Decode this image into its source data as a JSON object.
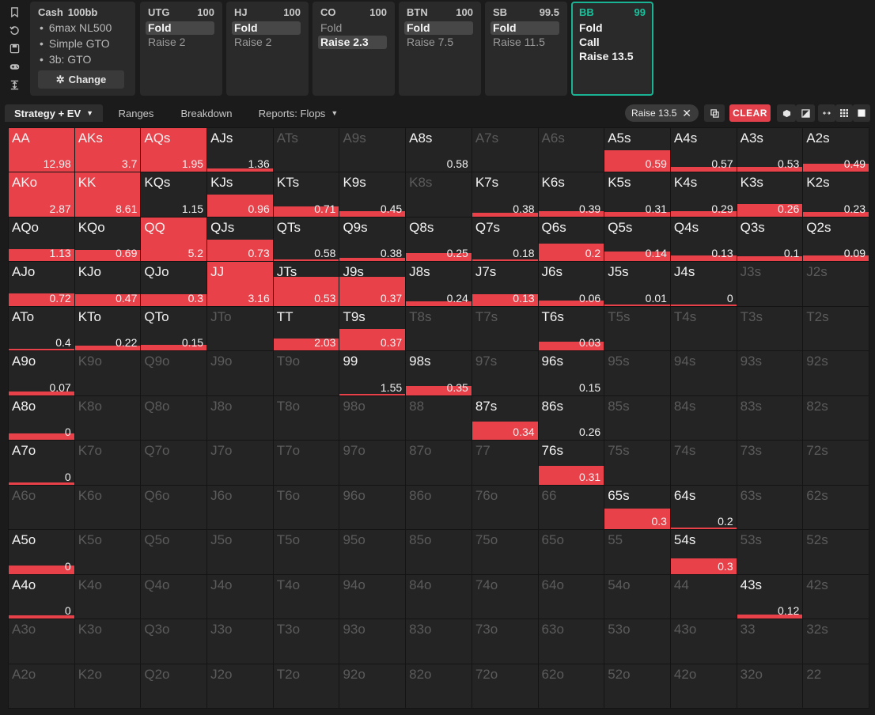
{
  "rail_icons": [
    "bookmark-icon",
    "reset-icon",
    "save-icon",
    "gamepad-icon",
    "collapse-icon"
  ],
  "info_card": {
    "title": "Cash",
    "stack": "100bb",
    "lines": [
      "6max NL500",
      "Simple GTO",
      "3b: GTO"
    ],
    "change_label": "Change"
  },
  "positions": [
    {
      "name": "UTG",
      "stack": "100",
      "actions": [
        {
          "label": "Fold",
          "selected": true
        },
        {
          "label": "Raise 2",
          "selected": false
        }
      ]
    },
    {
      "name": "HJ",
      "stack": "100",
      "actions": [
        {
          "label": "Fold",
          "selected": true
        },
        {
          "label": "Raise 2",
          "selected": false
        }
      ]
    },
    {
      "name": "CO",
      "stack": "100",
      "actions": [
        {
          "label": "Fold",
          "selected": false
        },
        {
          "label": "Raise 2.3",
          "selected": true
        }
      ]
    },
    {
      "name": "BTN",
      "stack": "100",
      "actions": [
        {
          "label": "Fold",
          "selected": true
        },
        {
          "label": "Raise 7.5",
          "selected": false
        }
      ]
    },
    {
      "name": "SB",
      "stack": "99.5",
      "actions": [
        {
          "label": "Fold",
          "selected": true
        },
        {
          "label": "Raise 11.5",
          "selected": false
        }
      ]
    },
    {
      "name": "BB",
      "stack": "99",
      "actions": [
        {
          "label": "Fold",
          "selected": false
        },
        {
          "label": "Call",
          "selected": false
        },
        {
          "label": "Raise 13.5",
          "selected": false
        }
      ],
      "active": true
    }
  ],
  "tabs": [
    {
      "label": "Strategy + EV",
      "active": true,
      "dropdown": true
    },
    {
      "label": "Ranges",
      "active": false,
      "dropdown": false
    },
    {
      "label": "Breakdown",
      "active": false,
      "dropdown": false
    },
    {
      "label": "Reports: Flops",
      "active": false,
      "dropdown": true
    }
  ],
  "filter_chip": {
    "label": "Raise 13.5"
  },
  "clear_label": "CLEAR",
  "colors": {
    "accent_teal": "#1ab394",
    "raise_red": "#e8414a",
    "cell_bg": "#242424"
  },
  "grid": {
    "ranks": [
      "A",
      "K",
      "Q",
      "J",
      "T",
      "9",
      "8",
      "7",
      "6",
      "5",
      "4",
      "3",
      "2"
    ],
    "rows": [
      [
        [
          1.0,
          "12.98"
        ],
        [
          1.0,
          "3.7"
        ],
        [
          1.0,
          "1.95"
        ],
        [
          0.08,
          "1.36"
        ],
        null,
        null,
        [
          0.0,
          "0.58"
        ],
        null,
        null,
        [
          0.5,
          "0.59"
        ],
        [
          0.12,
          "0.57"
        ],
        [
          0.12,
          "0.53"
        ],
        [
          0.18,
          "0.49"
        ]
      ],
      [
        [
          1.0,
          "2.87"
        ],
        [
          1.0,
          "8.61"
        ],
        [
          0.0,
          "1.15"
        ],
        [
          0.5,
          "0.96"
        ],
        [
          0.24,
          "0.71"
        ],
        [
          0.12,
          "0.45"
        ],
        null,
        [
          0.08,
          "0.38"
        ],
        [
          0.12,
          "0.39"
        ],
        [
          0.1,
          "0.31"
        ],
        [
          0.12,
          "0.29"
        ],
        [
          0.28,
          "0.26"
        ],
        [
          0.1,
          "0.23"
        ]
      ],
      [
        [
          0.28,
          "1.13"
        ],
        [
          0.26,
          "0.69"
        ],
        [
          1.0,
          "5.2"
        ],
        [
          0.5,
          "0.73"
        ],
        [
          0.05,
          "0.58"
        ],
        [
          0.08,
          "0.38"
        ],
        [
          0.18,
          "0.25"
        ],
        [
          0.04,
          "0.18"
        ],
        [
          0.4,
          "0.2"
        ],
        [
          0.22,
          "0.14"
        ],
        [
          0.14,
          "0.13"
        ],
        [
          0.12,
          "0.1"
        ],
        [
          0.14,
          "0.09"
        ]
      ],
      [
        [
          0.28,
          "0.72"
        ],
        [
          0.26,
          "0.47"
        ],
        [
          0.26,
          "0.3"
        ],
        [
          1.0,
          "3.16"
        ],
        [
          0.66,
          "0.53"
        ],
        [
          0.66,
          "0.37"
        ],
        [
          0.1,
          "0.24"
        ],
        [
          0.26,
          "0.13"
        ],
        [
          0.12,
          "0.06"
        ],
        [
          0.04,
          "0.01"
        ],
        [
          0.04,
          "0"
        ],
        null,
        null
      ],
      [
        [
          0.05,
          "0.4"
        ],
        [
          0.12,
          "0.22"
        ],
        [
          0.14,
          "0.15"
        ],
        null,
        [
          0.28,
          "2.03"
        ],
        [
          0.5,
          "0.37"
        ],
        null,
        null,
        [
          0.2,
          "0.03"
        ],
        null,
        null,
        null,
        null
      ],
      [
        [
          0.08,
          "0.07"
        ],
        null,
        null,
        null,
        null,
        [
          0.04,
          "1.55"
        ],
        [
          0.22,
          "0.35"
        ],
        null,
        [
          0.0,
          "0.15"
        ],
        null,
        null,
        null,
        null
      ],
      [
        [
          0.14,
          "0"
        ],
        null,
        null,
        null,
        null,
        null,
        null,
        [
          0.42,
          "0.34"
        ],
        [
          0.0,
          "0.26"
        ],
        null,
        null,
        null,
        null
      ],
      [
        [
          0.04,
          "0"
        ],
        null,
        null,
        null,
        null,
        null,
        null,
        null,
        [
          0.42,
          "0.31"
        ],
        null,
        null,
        null,
        null
      ],
      [
        null,
        null,
        null,
        null,
        null,
        null,
        null,
        null,
        null,
        [
          0.48,
          "0.3"
        ],
        [
          0.04,
          "0.2"
        ],
        null,
        null
      ],
      [
        [
          0.2,
          "0"
        ],
        null,
        null,
        null,
        null,
        null,
        null,
        null,
        null,
        null,
        [
          0.36,
          "0.3"
        ],
        null,
        null
      ],
      [
        [
          0.08,
          "0"
        ],
        null,
        null,
        null,
        null,
        null,
        null,
        null,
        null,
        null,
        null,
        [
          0.1,
          "0.12"
        ],
        null
      ],
      [
        null,
        null,
        null,
        null,
        null,
        null,
        null,
        null,
        null,
        null,
        null,
        null,
        null
      ],
      [
        null,
        null,
        null,
        null,
        null,
        null,
        null,
        null,
        null,
        null,
        null,
        null,
        null
      ]
    ]
  }
}
